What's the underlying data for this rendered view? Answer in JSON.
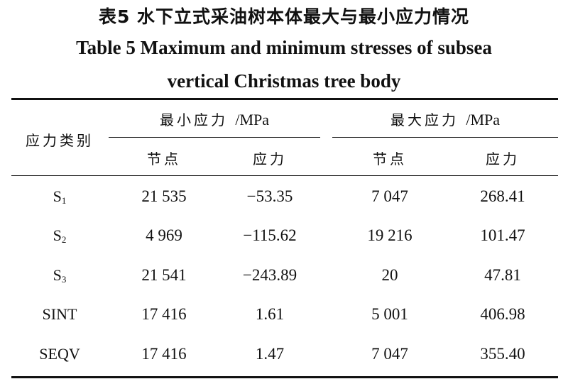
{
  "title": {
    "cn": "表5  水下立式采油树本体最大与最小应力情况",
    "en_line1": "Table 5  Maximum and minimum stresses of subsea",
    "en_line2": "vertical Christmas tree body"
  },
  "header": {
    "category": "应力类别",
    "min_group": "最小应力",
    "max_group": "最大应力",
    "unit": "/MPa",
    "node": "节点",
    "stress": "应力"
  },
  "rows": [
    {
      "label": "S",
      "sub": "1",
      "min_node": "21 535",
      "min_stress": "−53.35",
      "max_node": "7 047",
      "max_stress": "268.41"
    },
    {
      "label": "S",
      "sub": "2",
      "min_node": "4 969",
      "min_stress": "−115.62",
      "max_node": "19 216",
      "max_stress": "101.47"
    },
    {
      "label": "S",
      "sub": "3",
      "min_node": "21 541",
      "min_stress": "−243.89",
      "max_node": "20",
      "max_stress": "47.81"
    },
    {
      "label": "SINT",
      "sub": "",
      "min_node": "17 416",
      "min_stress": "1.61",
      "max_node": "5 001",
      "max_stress": "406.98"
    },
    {
      "label": "SEQV",
      "sub": "",
      "min_node": "17 416",
      "min_stress": "1.47",
      "max_node": "7 047",
      "max_stress": "355.40"
    }
  ]
}
